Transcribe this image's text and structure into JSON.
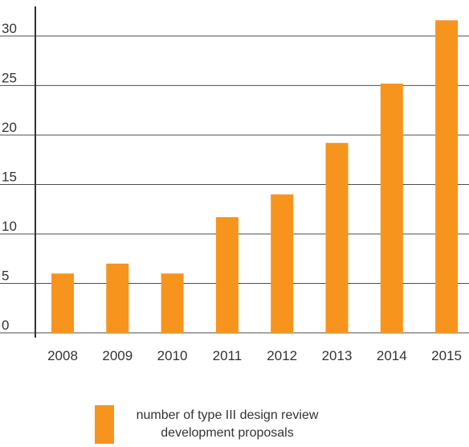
{
  "chart_data": {
    "type": "bar",
    "categories": [
      "2008",
      "2009",
      "2010",
      "2011",
      "2012",
      "2013",
      "2014",
      "2015"
    ],
    "series": [
      {
        "name": "number of type III design review development proposals",
        "values": [
          6,
          7,
          6,
          11.7,
          14,
          19.2,
          25.2,
          31.6
        ],
        "color": "#f7941e"
      }
    ],
    "title": "",
    "xlabel": "",
    "ylabel": "",
    "ylim": [
      0,
      33
    ],
    "yticks": [
      0,
      5,
      10,
      15,
      20,
      25,
      30
    ],
    "grid": true,
    "legend": "bottom-center"
  }
}
